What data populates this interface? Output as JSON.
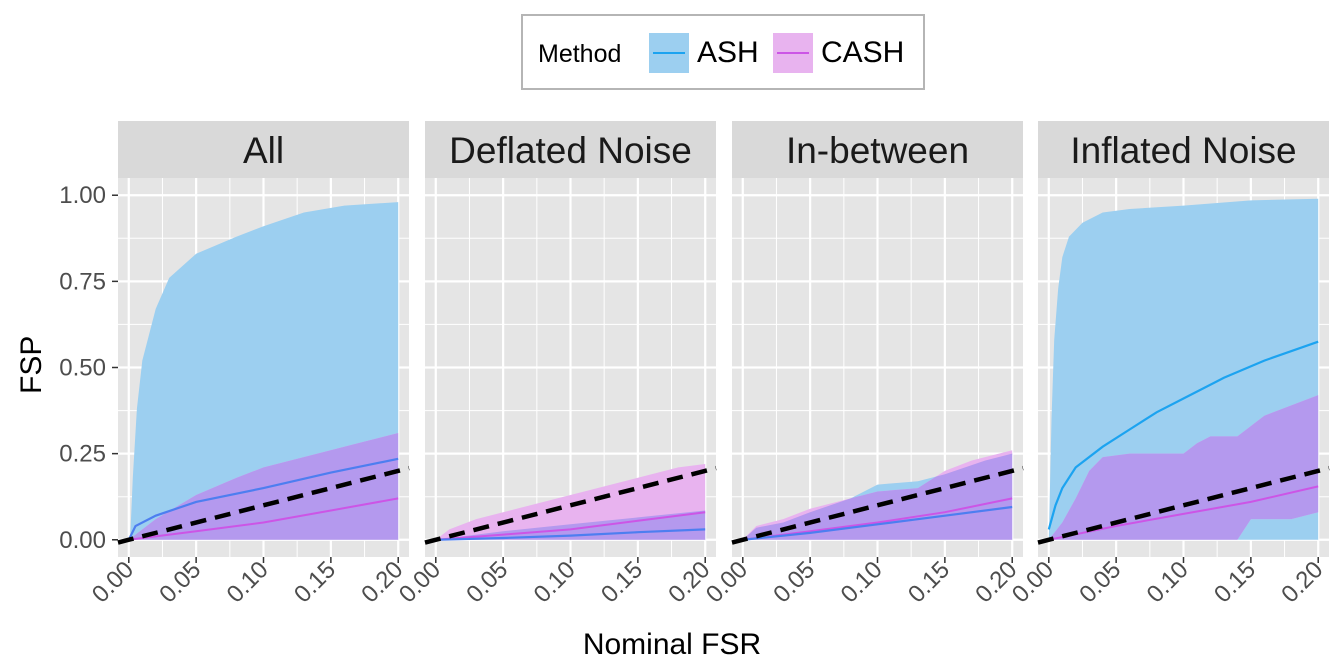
{
  "legend": {
    "title": "Method",
    "items": [
      {
        "label": "ASH",
        "color": "#1ca3f0",
        "fill": "#9ccff0"
      },
      {
        "label": "CASH",
        "color": "#cc55e6",
        "fill": "#e8b3ef"
      }
    ]
  },
  "colors": {
    "panel_bg": "#e5e5e5",
    "strip_bg": "#d9d9d9",
    "grid": "#ffffff",
    "overlap_fill": "#b499ee",
    "ash_line_over_overlap": "#4d7ef0",
    "reference_line": "#000000"
  },
  "chart_data": {
    "type": "area",
    "xlabel": "Nominal FSR",
    "ylabel": "FSP",
    "xlim": [
      -0.008,
      0.208
    ],
    "ylim": [
      -0.05,
      1.05
    ],
    "x_ticks": [
      "0.00",
      "0.05",
      "0.10",
      "0.15",
      "0.20"
    ],
    "y_ticks": [
      "0.00",
      "0.25",
      "0.50",
      "0.75",
      "1.00"
    ],
    "reference_line": "y = x (dashed)",
    "panels": [
      {
        "title": "All",
        "series": [
          {
            "name": "ASH",
            "mean": [
              [
                0.0,
                0.0
              ],
              [
                0.005,
                0.04
              ],
              [
                0.02,
                0.07
              ],
              [
                0.05,
                0.11
              ],
              [
                0.1,
                0.15
              ],
              [
                0.15,
                0.195
              ],
              [
                0.2,
                0.235
              ]
            ],
            "upper": [
              [
                0.001,
                0.0
              ],
              [
                0.003,
                0.18
              ],
              [
                0.006,
                0.38
              ],
              [
                0.01,
                0.52
              ],
              [
                0.02,
                0.67
              ],
              [
                0.03,
                0.76
              ],
              [
                0.05,
                0.83
              ],
              [
                0.08,
                0.88
              ],
              [
                0.1,
                0.91
              ],
              [
                0.13,
                0.95
              ],
              [
                0.16,
                0.97
              ],
              [
                0.2,
                0.98
              ]
            ],
            "lower": [
              [
                0.0,
                0.0
              ],
              [
                0.2,
                0.0
              ]
            ]
          },
          {
            "name": "CASH",
            "mean": [
              [
                0.0,
                0.0
              ],
              [
                0.05,
                0.025
              ],
              [
                0.1,
                0.05
              ],
              [
                0.15,
                0.085
              ],
              [
                0.2,
                0.12
              ]
            ],
            "upper": [
              [
                0.0,
                0.0
              ],
              [
                0.02,
                0.06
              ],
              [
                0.05,
                0.13
              ],
              [
                0.08,
                0.18
              ],
              [
                0.1,
                0.21
              ],
              [
                0.14,
                0.25
              ],
              [
                0.17,
                0.28
              ],
              [
                0.2,
                0.31
              ],
              [
                0.2,
                0.33
              ]
            ],
            "lower": [
              [
                0.0,
                0.0
              ],
              [
                0.2,
                0.0
              ]
            ]
          }
        ]
      },
      {
        "title": "Deflated Noise",
        "series": [
          {
            "name": "ASH",
            "mean": [
              [
                0.0,
                0.0
              ],
              [
                0.05,
                0.005
              ],
              [
                0.1,
                0.012
              ],
              [
                0.15,
                0.022
              ],
              [
                0.2,
                0.03
              ]
            ],
            "upper": [
              [
                0.0,
                0.0
              ],
              [
                0.05,
                0.025
              ],
              [
                0.1,
                0.045
              ],
              [
                0.15,
                0.065
              ],
              [
                0.2,
                0.085
              ]
            ],
            "lower": [
              [
                0.0,
                0.0
              ],
              [
                0.2,
                0.0
              ]
            ]
          },
          {
            "name": "CASH",
            "mean": [
              [
                0.0,
                0.0
              ],
              [
                0.05,
                0.015
              ],
              [
                0.1,
                0.03
              ],
              [
                0.15,
                0.055
              ],
              [
                0.2,
                0.08
              ]
            ],
            "upper": [
              [
                0.0,
                0.0
              ],
              [
                0.01,
                0.03
              ],
              [
                0.03,
                0.06
              ],
              [
                0.05,
                0.08
              ],
              [
                0.08,
                0.11
              ],
              [
                0.1,
                0.13
              ],
              [
                0.12,
                0.15
              ],
              [
                0.15,
                0.18
              ],
              [
                0.18,
                0.21
              ],
              [
                0.2,
                0.22
              ]
            ],
            "lower": [
              [
                0.0,
                0.0
              ],
              [
                0.2,
                0.0
              ]
            ]
          }
        ]
      },
      {
        "title": "In-between",
        "series": [
          {
            "name": "ASH",
            "mean": [
              [
                0.0,
                0.0
              ],
              [
                0.05,
                0.02
              ],
              [
                0.1,
                0.045
              ],
              [
                0.15,
                0.07
              ],
              [
                0.2,
                0.095
              ]
            ],
            "upper": [
              [
                0.0,
                0.0
              ],
              [
                0.01,
                0.035
              ],
              [
                0.03,
                0.05
              ],
              [
                0.05,
                0.08
              ],
              [
                0.08,
                0.12
              ],
              [
                0.1,
                0.16
              ],
              [
                0.13,
                0.17
              ],
              [
                0.15,
                0.19
              ],
              [
                0.18,
                0.23
              ],
              [
                0.2,
                0.25
              ]
            ],
            "lower": [
              [
                0.0,
                0.0
              ],
              [
                0.2,
                0.0
              ]
            ]
          },
          {
            "name": "CASH",
            "mean": [
              [
                0.0,
                0.0
              ],
              [
                0.05,
                0.025
              ],
              [
                0.1,
                0.05
              ],
              [
                0.15,
                0.08
              ],
              [
                0.2,
                0.12
              ]
            ],
            "upper": [
              [
                0.0,
                0.0
              ],
              [
                0.01,
                0.04
              ],
              [
                0.03,
                0.06
              ],
              [
                0.05,
                0.09
              ],
              [
                0.08,
                0.12
              ],
              [
                0.1,
                0.14
              ],
              [
                0.13,
                0.15
              ],
              [
                0.15,
                0.2
              ],
              [
                0.17,
                0.23
              ],
              [
                0.2,
                0.26
              ],
              [
                0.2,
                0.28
              ]
            ],
            "lower": [
              [
                0.0,
                0.0
              ],
              [
                0.2,
                0.0
              ]
            ]
          }
        ]
      },
      {
        "title": "Inflated Noise",
        "series": [
          {
            "name": "ASH",
            "mean": [
              [
                0.0,
                0.03
              ],
              [
                0.005,
                0.1
              ],
              [
                0.01,
                0.15
              ],
              [
                0.02,
                0.21
              ],
              [
                0.04,
                0.27
              ],
              [
                0.06,
                0.32
              ],
              [
                0.08,
                0.37
              ],
              [
                0.1,
                0.41
              ],
              [
                0.13,
                0.47
              ],
              [
                0.16,
                0.52
              ],
              [
                0.2,
                0.575
              ]
            ],
            "upper": [
              [
                0.0,
                0.0
              ],
              [
                0.002,
                0.35
              ],
              [
                0.004,
                0.58
              ],
              [
                0.007,
                0.73
              ],
              [
                0.01,
                0.82
              ],
              [
                0.015,
                0.88
              ],
              [
                0.025,
                0.92
              ],
              [
                0.04,
                0.95
              ],
              [
                0.06,
                0.96
              ],
              [
                0.1,
                0.97
              ],
              [
                0.15,
                0.985
              ],
              [
                0.2,
                0.99
              ]
            ],
            "lower": [
              [
                0.0,
                0.0
              ],
              [
                0.2,
                0.0
              ]
            ]
          },
          {
            "name": "CASH",
            "mean": [
              [
                0.0,
                0.0
              ],
              [
                0.05,
                0.04
              ],
              [
                0.1,
                0.075
              ],
              [
                0.15,
                0.11
              ],
              [
                0.2,
                0.155
              ]
            ],
            "upper": [
              [
                0.0,
                0.0
              ],
              [
                0.01,
                0.05
              ],
              [
                0.02,
                0.12
              ],
              [
                0.03,
                0.2
              ],
              [
                0.04,
                0.24
              ],
              [
                0.06,
                0.25
              ],
              [
                0.08,
                0.25
              ],
              [
                0.1,
                0.25
              ],
              [
                0.11,
                0.28
              ],
              [
                0.12,
                0.3
              ],
              [
                0.14,
                0.3
              ],
              [
                0.16,
                0.36
              ],
              [
                0.18,
                0.39
              ],
              [
                0.2,
                0.42
              ]
            ],
            "lower": [
              [
                0.0,
                0.0
              ],
              [
                0.09,
                0.0
              ],
              [
                0.1,
                0.0
              ],
              [
                0.14,
                0.0
              ],
              [
                0.15,
                0.06
              ],
              [
                0.18,
                0.06
              ],
              [
                0.2,
                0.08
              ]
            ]
          }
        ]
      }
    ]
  }
}
